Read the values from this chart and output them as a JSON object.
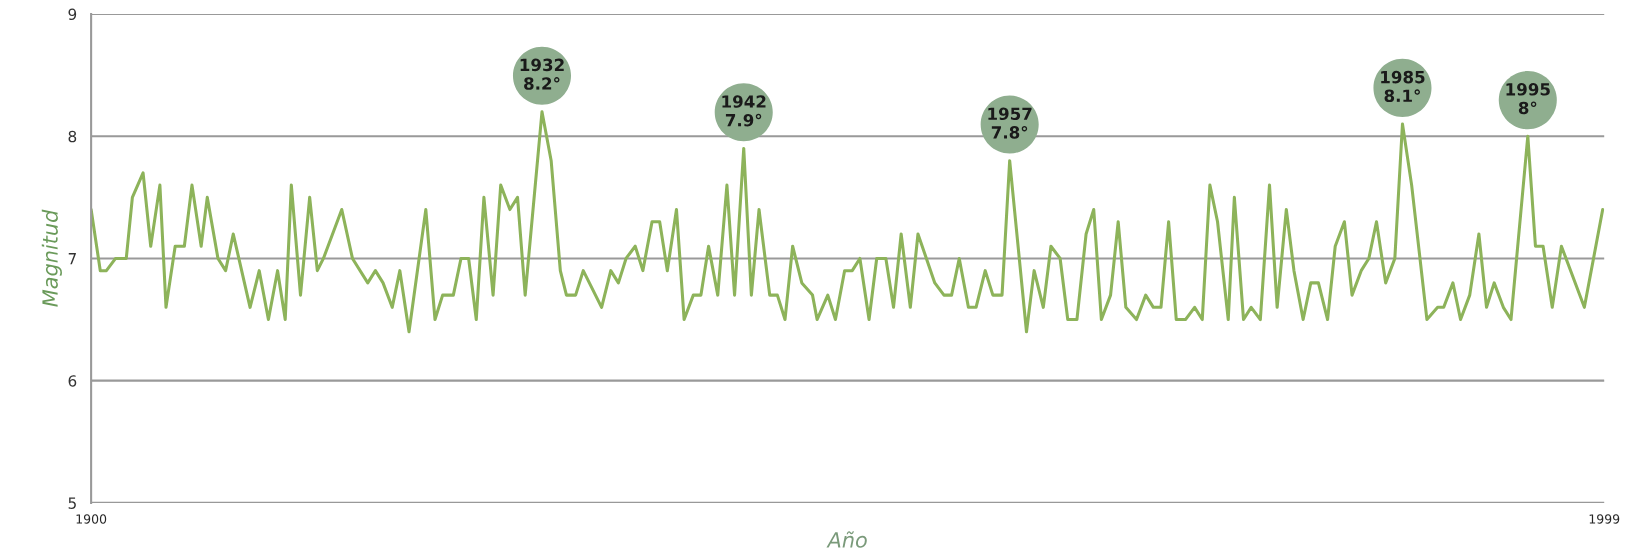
{
  "chart_data": {
    "type": "line",
    "xlabel": "Año",
    "ylabel": "Magnitud",
    "x": [
      1900.0,
      1900.6,
      1901.0,
      1901.6,
      1902.3,
      1902.7,
      1903.4,
      1903.9,
      1904.5,
      1904.9,
      1905.5,
      1906.1,
      1906.6,
      1907.2,
      1907.6,
      1908.3,
      1908.8,
      1909.3,
      1910.4,
      1911.0,
      1911.6,
      1912.2,
      1912.7,
      1913.1,
      1913.7,
      1914.3,
      1914.8,
      1915.2,
      1916.4,
      1917.1,
      1918.1,
      1918.6,
      1919.1,
      1919.7,
      1920.2,
      1920.8,
      1921.9,
      1922.5,
      1923.0,
      1923.7,
      1924.2,
      1924.7,
      1925.2,
      1925.7,
      1926.3,
      1926.8,
      1927.4,
      1927.9,
      1928.4,
      1929.5,
      1930.1,
      1930.7,
      1931.1,
      1931.7,
      1932.2,
      1933.4,
      1934.0,
      1934.5,
      1935.0,
      1935.6,
      1936.1,
      1936.7,
      1937.2,
      1937.7,
      1938.3,
      1938.8,
      1939.4,
      1939.9,
      1940.4,
      1941.0,
      1941.6,
      1942.1,
      1942.7,
      1943.2,
      1943.7,
      1944.4,
      1944.9,
      1945.4,
      1945.9,
      1946.5,
      1947.2,
      1947.5,
      1948.2,
      1948.7,
      1949.3,
      1949.8,
      1950.3,
      1950.9,
      1951.4,
      1952.0,
      1952.5,
      1953.0,
      1953.6,
      1954.1,
      1955.2,
      1955.8,
      1956.3,
      1956.8,
      1957.4,
      1957.9,
      1958.5,
      1959.0,
      1959.6,
      1960.1,
      1961.2,
      1961.7,
      1962.3,
      1962.8,
      1963.4,
      1963.9,
      1964.5,
      1965.1,
      1965.6,
      1966.1,
      1966.7,
      1967.2,
      1967.7,
      1968.4,
      1969.0,
      1969.5,
      1970.0,
      1970.5,
      1971.0,
      1971.6,
      1972.2,
      1972.7,
      1973.2,
      1973.7,
      1974.4,
      1974.8,
      1975.4,
      1975.9,
      1976.5,
      1977.1,
      1977.6,
      1978.2,
      1978.7,
      1979.3,
      1979.8,
      1980.3,
      1980.9,
      1981.4,
      1982.0,
      1982.5,
      1983.1,
      1983.6,
      1984.1,
      1984.7,
      1985.3,
      1985.8,
      1986.4,
      1987.4,
      1988.1,
      1988.5,
      1989.1,
      1989.6,
      1990.2,
      1990.8,
      1991.3,
      1991.8,
      1992.4,
      1992.9,
      1994.0,
      1994.5,
      1995.0,
      1995.6,
      1996.2,
      1997.7,
      1998.9
    ],
    "series": [
      {
        "color": "#8db35a",
        "values": [
          7.4,
          6.9,
          6.9,
          7.0,
          7.0,
          7.5,
          7.7,
          7.1,
          7.6,
          6.6,
          7.1,
          7.1,
          7.6,
          7.1,
          7.5,
          7.0,
          6.9,
          7.2,
          6.6,
          6.9,
          6.5,
          6.9,
          6.5,
          7.6,
          6.7,
          7.5,
          6.9,
          7.0,
          7.4,
          7.0,
          6.8,
          6.9,
          6.8,
          6.6,
          6.9,
          6.4,
          7.4,
          6.5,
          6.7,
          6.7,
          7.0,
          7.0,
          6.5,
          7.5,
          6.7,
          7.6,
          7.4,
          7.5,
          6.7,
          8.2,
          7.8,
          6.9,
          6.7,
          6.7,
          6.9,
          6.6,
          6.9,
          6.8,
          7.0,
          7.1,
          6.9,
          7.3,
          7.3,
          6.9,
          7.4,
          6.5,
          6.7,
          6.7,
          7.1,
          6.7,
          7.6,
          6.7,
          7.9,
          6.7,
          7.4,
          6.7,
          6.7,
          6.5,
          7.1,
          6.8,
          6.7,
          6.5,
          6.7,
          6.5,
          6.9,
          6.9,
          7.0,
          6.5,
          7.0,
          7.0,
          6.6,
          7.2,
          6.6,
          7.2,
          6.8,
          6.7,
          6.7,
          7.0,
          6.6,
          6.6,
          6.9,
          6.7,
          6.7,
          7.8,
          6.4,
          6.9,
          6.6,
          7.1,
          7.0,
          6.5,
          6.5,
          7.2,
          7.4,
          6.5,
          6.7,
          7.3,
          6.6,
          6.5,
          6.7,
          6.6,
          6.6,
          7.3,
          6.5,
          6.5,
          6.6,
          6.5,
          7.6,
          7.3,
          6.5,
          7.5,
          6.5,
          6.6,
          6.5,
          7.6,
          6.6,
          7.4,
          6.9,
          6.5,
          6.8,
          6.8,
          6.5,
          7.1,
          7.3,
          6.7,
          6.9,
          7.0,
          7.3,
          6.8,
          7.0,
          8.1,
          7.6,
          6.5,
          6.6,
          6.6,
          6.8,
          6.5,
          6.7,
          7.2,
          6.6,
          6.8,
          6.6,
          6.5,
          8.0,
          7.1,
          7.1,
          6.6,
          7.1,
          6.6,
          7.4
        ]
      }
    ],
    "xlim": [
      1900,
      1999
    ],
    "xticks": [
      1900,
      1999
    ],
    "ylim": [
      5,
      9
    ],
    "yticks": [
      5,
      6,
      7,
      8,
      9
    ],
    "grid": "y",
    "annotations": [
      {
        "text": "1932\n8.2°",
        "x": 1929.5,
        "y": 8.2
      },
      {
        "text": "1942\n7.9°",
        "x": 1942.7,
        "y": 7.9
      },
      {
        "text": "1957\n7.8°",
        "x": 1960.1,
        "y": 7.8
      },
      {
        "text": "1985\n8.1°",
        "x": 1985.8,
        "y": 8.1
      },
      {
        "text": "1995\n8°",
        "x": 1994.0,
        "y": 8.0
      }
    ]
  }
}
